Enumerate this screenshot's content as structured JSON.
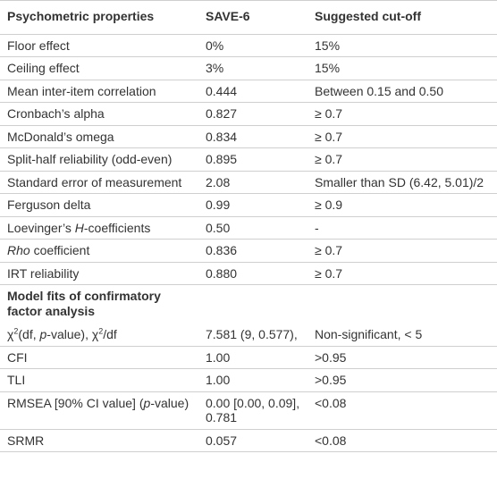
{
  "table": {
    "header": [
      "Psychometric properties",
      "SAVE-6",
      "Suggested cut-off"
    ],
    "rows": [
      [
        "Floor effect",
        "0%",
        "15%"
      ],
      [
        "Ceiling effect",
        "3%",
        "15%"
      ],
      [
        "Mean inter-item correlation",
        "0.444",
        "Between 0.15 and 0.50"
      ],
      [
        "Cronbach’s alpha",
        "0.827",
        "≥ 0.7"
      ],
      [
        "McDonald’s omega",
        "0.834",
        "≥ 0.7"
      ],
      [
        "Split-half reliability (odd-even)",
        "0.895",
        "≥ 0.7"
      ],
      [
        "Standard error of measurement",
        "2.08",
        "Smaller than SD (6.42, 5.01)/2"
      ],
      [
        "Ferguson delta",
        "0.99",
        "≥ 0.9"
      ],
      [
        [
          {
            "text": "Loevinger’s "
          },
          {
            "text": "H",
            "italic": true
          },
          {
            "text": "-coefficients"
          }
        ],
        "0.50",
        "-"
      ],
      [
        [
          {
            "text": "Rho",
            "italic": true
          },
          {
            "text": " coefficient"
          }
        ],
        "0.836",
        "≥ 0.7"
      ],
      [
        "IRT reliability",
        "0.880",
        "≥ 0.7"
      ],
      {
        "heading": "Model fits of confirmatory factor analysis"
      },
      [
        [
          {
            "text": "χ"
          },
          {
            "text": "2",
            "sup": true
          },
          {
            "text": "(df, "
          },
          {
            "text": "p",
            "italic": true
          },
          {
            "text": "-value), χ"
          },
          {
            "text": "2",
            "sup": true
          },
          {
            "text": "/df"
          }
        ],
        "7.581 (9, 0.577),",
        "Non-significant, < 5"
      ],
      [
        "CFI",
        "1.00",
        ">0.95"
      ],
      [
        "TLI",
        "1.00",
        ">0.95"
      ],
      [
        [
          {
            "text": "RMSEA [90% CI value] ("
          },
          {
            "text": "p",
            "italic": true
          },
          {
            "text": "-value)"
          }
        ],
        "0.00 [0.00, 0.09], 0.781",
        "<0.08"
      ],
      [
        "SRMR",
        "0.057",
        "<0.08"
      ]
    ]
  }
}
